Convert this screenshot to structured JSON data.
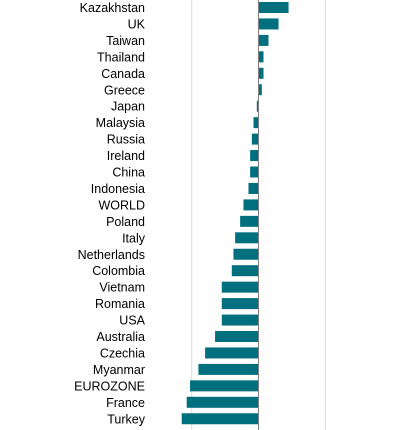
{
  "chart_data": {
    "type": "bar",
    "orientation": "horizontal",
    "title": "",
    "xlabel": "",
    "ylabel": "",
    "grid": true,
    "legend": "none",
    "bar_color": "#00707f",
    "grid_color": "#d9d9d9",
    "axis_color": "#7f7f7f",
    "x_range": [
      -3.1,
      3.1
    ],
    "x_gridlines": [
      -2,
      0,
      2
    ],
    "categories": [
      "Kazakhstan",
      "UK",
      "Taiwan",
      "Thailand",
      "Canada",
      "Greece",
      "Japan",
      "Malaysia",
      "Russia",
      "Ireland",
      "China",
      "Indonesia",
      "WORLD",
      "Poland",
      "Italy",
      "Netherlands",
      "Colombia",
      "Vietnam",
      "Romania",
      "USA",
      "Australia",
      "Czechia",
      "Myanmar",
      "EUROZONE",
      "France",
      "Turkey"
    ],
    "values": [
      0.9,
      0.6,
      0.3,
      0.15,
      0.15,
      0.1,
      -0.05,
      -0.15,
      -0.2,
      -0.25,
      -0.25,
      -0.3,
      -0.45,
      -0.55,
      -0.7,
      -0.75,
      -0.8,
      -1.1,
      -1.1,
      -1.1,
      -1.3,
      -1.6,
      -1.8,
      -2.05,
      -2.15,
      -2.3
    ]
  }
}
